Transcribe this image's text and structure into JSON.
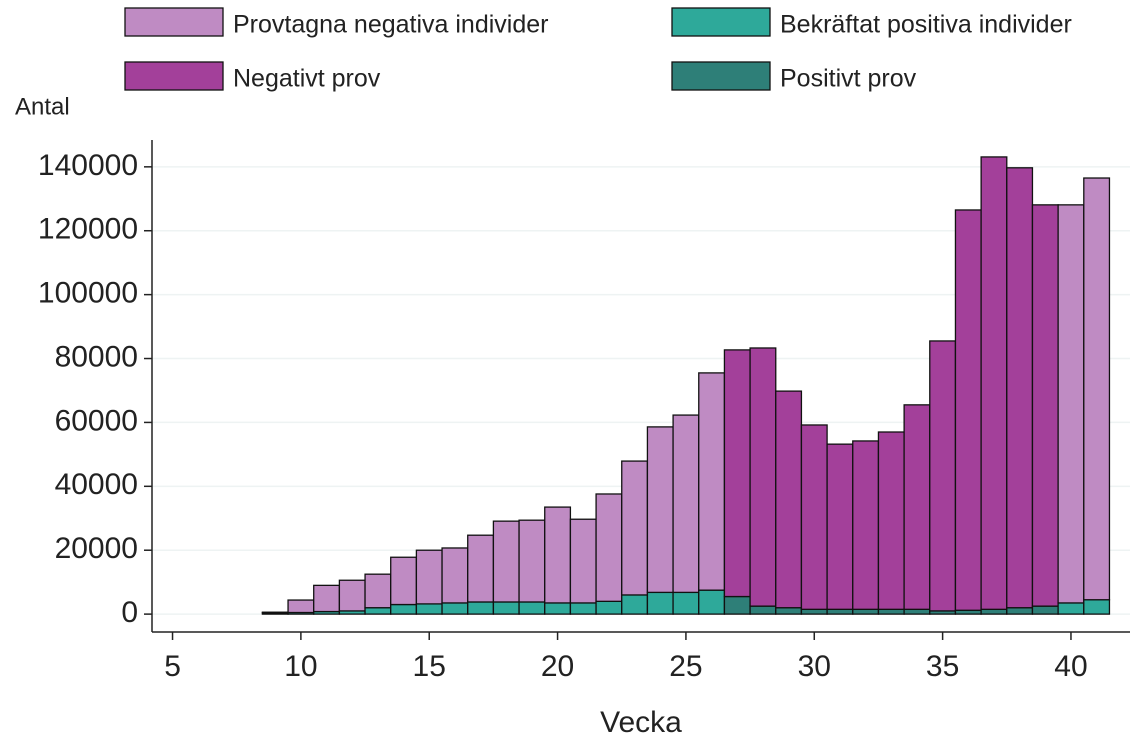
{
  "chart_data": {
    "type": "bar",
    "stacked": true,
    "y_label": "Antal",
    "x_label": "Vecka",
    "x": [
      6,
      7,
      8,
      9,
      10,
      11,
      12,
      13,
      14,
      15,
      16,
      17,
      18,
      19,
      20,
      21,
      22,
      23,
      24,
      25,
      26,
      27,
      28,
      29,
      30,
      31,
      32,
      33,
      34,
      35,
      36,
      37,
      38,
      39,
      40,
      41
    ],
    "series": [
      {
        "name": "Provtagna negativa individer",
        "color": "#bf8bc3",
        "values": [
          0,
          0,
          0,
          200,
          3900,
          8200,
          9600,
          10500,
          14800,
          16800,
          17200,
          20900,
          25300,
          25600,
          30000,
          26200,
          33600,
          41900,
          51800,
          55500,
          68000,
          null,
          null,
          null,
          null,
          null,
          null,
          null,
          null,
          null,
          null,
          null,
          null,
          null,
          124600,
          132000
        ]
      },
      {
        "name": "Bekräftat positiva individer",
        "color": "#2ea99a",
        "values": [
          0,
          0,
          0,
          400,
          500,
          800,
          1000,
          2000,
          3000,
          3200,
          3500,
          3800,
          3800,
          3800,
          3500,
          3500,
          4000,
          6000,
          6800,
          6800,
          7500,
          null,
          null,
          null,
          null,
          null,
          null,
          null,
          null,
          null,
          null,
          null,
          null,
          null,
          3500,
          4500
        ]
      },
      {
        "name": "Negativt prov",
        "color": "#a3409a",
        "values": [
          null,
          null,
          null,
          null,
          null,
          null,
          null,
          null,
          null,
          null,
          null,
          null,
          null,
          null,
          null,
          null,
          null,
          null,
          null,
          null,
          null,
          77200,
          80800,
          67800,
          57700,
          51700,
          52700,
          55500,
          64000,
          84500,
          125300,
          141600,
          137700,
          125600,
          null,
          null
        ]
      },
      {
        "name": "Positivt prov",
        "color": "#2e7f78",
        "values": [
          null,
          null,
          null,
          null,
          null,
          null,
          null,
          null,
          null,
          null,
          null,
          null,
          null,
          null,
          null,
          null,
          null,
          null,
          null,
          null,
          null,
          5500,
          2500,
          2000,
          1500,
          1500,
          1500,
          1500,
          1500,
          1000,
          1200,
          1500,
          2000,
          2500,
          null,
          null
        ]
      }
    ],
    "xlim": [
      4.2,
      42.3
    ],
    "xticks": [
      5,
      10,
      15,
      20,
      25,
      30,
      35,
      40
    ],
    "ylim": [
      -5600,
      148400
    ],
    "yticks": [
      0,
      20000,
      40000,
      60000,
      80000,
      100000,
      120000,
      140000
    ],
    "grid": true
  }
}
